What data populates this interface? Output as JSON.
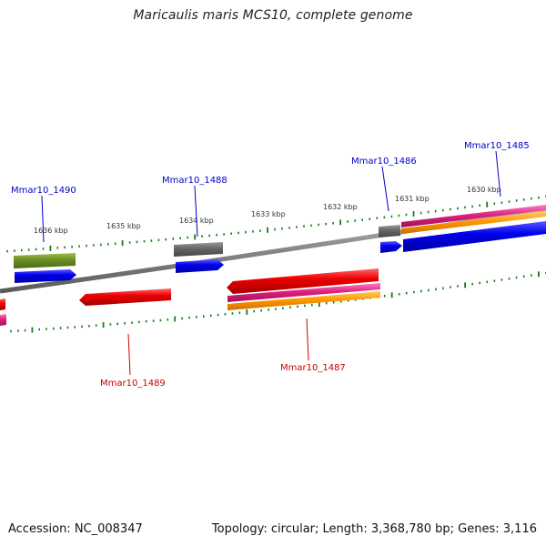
{
  "title": "Maricaulis maris MCS10, complete genome",
  "footer": {
    "accession": "Accession: NC_008347",
    "summary": "Topology: circular; Length: 3,368,780 bp; Genes: 3,116"
  },
  "tick_labels": [
    "1636 kbp",
    "1635 kbp",
    "1634 kbp",
    "1633 kbp",
    "1632 kbp",
    "1631 kbp",
    "1630 kbp"
  ],
  "gene_labels": {
    "forward": [
      "Mmar10_1490",
      "Mmar10_1488",
      "Mmar10_1486",
      "Mmar10_1485"
    ],
    "reverse": [
      "Mmar10_1489",
      "Mmar10_1487"
    ]
  },
  "colors": {
    "forward_label": "#0000cc",
    "reverse_label": "#cc0000",
    "tick": "#1a7a1a",
    "backbone": "#7a7a7a",
    "cds_forward": "#0000ee",
    "cds_reverse": "#ee0000",
    "gene_olive": "#6b8e23",
    "gene_gray": "#666666",
    "gene_magenta": "#e0207f",
    "gene_orange": "#ff9900"
  }
}
